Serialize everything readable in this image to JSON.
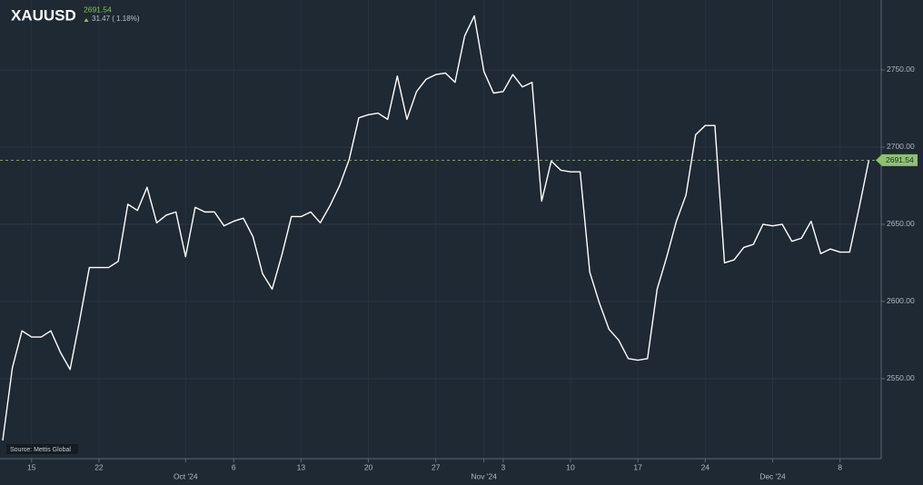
{
  "chart_data": {
    "type": "line",
    "title": "XAUUSD",
    "change_label": "31.47 ( 1.18%)",
    "source": "Source: Mettis Global",
    "grid": true,
    "x": [
      "2024-09-12",
      "2024-09-13",
      "2024-09-14",
      "2024-09-15",
      "2024-09-16",
      "2024-09-17",
      "2024-09-18",
      "2024-09-19",
      "2024-09-20",
      "2024-09-21",
      "2024-09-22",
      "2024-09-23",
      "2024-09-24",
      "2024-09-25",
      "2024-09-26",
      "2024-09-27",
      "2024-09-28",
      "2024-09-29",
      "2024-09-30",
      "2024-10-01",
      "2024-10-02",
      "2024-10-03",
      "2024-10-04",
      "2024-10-05",
      "2024-10-06",
      "2024-10-07",
      "2024-10-08",
      "2024-10-09",
      "2024-10-10",
      "2024-10-11",
      "2024-10-12",
      "2024-10-13",
      "2024-10-14",
      "2024-10-15",
      "2024-10-16",
      "2024-10-17",
      "2024-10-18",
      "2024-10-19",
      "2024-10-20",
      "2024-10-21",
      "2024-10-22",
      "2024-10-23",
      "2024-10-24",
      "2024-10-25",
      "2024-10-26",
      "2024-10-27",
      "2024-10-28",
      "2024-10-29",
      "2024-10-30",
      "2024-10-31",
      "2024-11-01",
      "2024-11-02",
      "2024-11-03",
      "2024-11-04",
      "2024-11-05",
      "2024-11-06",
      "2024-11-07",
      "2024-11-08",
      "2024-11-09",
      "2024-11-10",
      "2024-11-11",
      "2024-11-12",
      "2024-11-13",
      "2024-11-14",
      "2024-11-15",
      "2024-11-16",
      "2024-11-17",
      "2024-11-18",
      "2024-11-19",
      "2024-11-20",
      "2024-11-21",
      "2024-11-22",
      "2024-11-23",
      "2024-11-24",
      "2024-11-25",
      "2024-11-26",
      "2024-11-27",
      "2024-11-28",
      "2024-11-29",
      "2024-11-30",
      "2024-12-01",
      "2024-12-02",
      "2024-12-03",
      "2024-12-04",
      "2024-12-05",
      "2024-12-06",
      "2024-12-07",
      "2024-12-08",
      "2024-12-09",
      "2024-12-10",
      "2024-12-11"
    ],
    "series": [
      {
        "name": "XAUUSD",
        "color": "#ffffff",
        "values": [
          2510,
          2557,
          2581,
          2577,
          2577,
          2581,
          2567,
          2556,
          2588,
          2622,
          2622,
          2622,
          2626,
          2663,
          2659,
          2674,
          2651,
          2656,
          2658,
          2629,
          2661,
          2658,
          2658,
          2649,
          2652,
          2654,
          2642,
          2618,
          2608,
          2630,
          2655,
          2655,
          2658,
          2651,
          2662,
          2675,
          2692,
          2719,
          2721,
          2722,
          2718,
          2746,
          2718,
          2736,
          2744,
          2747,
          2748,
          2742,
          2772,
          2785,
          2749,
          2735,
          2736,
          2747,
          2739,
          2742,
          2665,
          2691,
          2685,
          2684,
          2684,
          2619,
          2599,
          2582,
          2575,
          2563,
          2562,
          2563,
          2608,
          2629,
          2652,
          2669,
          2708,
          2714,
          2714,
          2625,
          2627,
          2635,
          2637,
          2650,
          2649,
          2650,
          2639,
          2641,
          2652,
          2631,
          2634,
          2632,
          2632,
          2661,
          2691.54
        ]
      }
    ],
    "xlim": [
      "2024-09-12",
      "2024-12-12"
    ],
    "xticks": [
      {
        "value": "2024-09-15",
        "label": "15"
      },
      {
        "value": "2024-09-22",
        "label": "22"
      },
      {
        "value": "2024-10-01",
        "label": "Oct '24"
      },
      {
        "value": "2024-10-06",
        "label": "6"
      },
      {
        "value": "2024-10-13",
        "label": "13"
      },
      {
        "value": "2024-10-20",
        "label": "20"
      },
      {
        "value": "2024-10-27",
        "label": "27"
      },
      {
        "value": "2024-11-01",
        "label": "Nov '24"
      },
      {
        "value": "2024-11-03",
        "label": "3"
      },
      {
        "value": "2024-11-10",
        "label": "10"
      },
      {
        "value": "2024-11-17",
        "label": "17"
      },
      {
        "value": "2024-11-24",
        "label": "24"
      },
      {
        "value": "2024-12-01",
        "label": "Dec '24"
      },
      {
        "value": "2024-12-08",
        "label": "8"
      }
    ],
    "ylim": [
      2498.2,
      2795.3
    ],
    "yticks": [
      {
        "value": 2550,
        "label": "2550.00"
      },
      {
        "value": 2600,
        "label": "2600.00"
      },
      {
        "value": 2650,
        "label": "2650.00"
      },
      {
        "value": 2700,
        "label": "2700.00"
      },
      {
        "value": 2750,
        "label": "2750.00"
      }
    ]
  }
}
